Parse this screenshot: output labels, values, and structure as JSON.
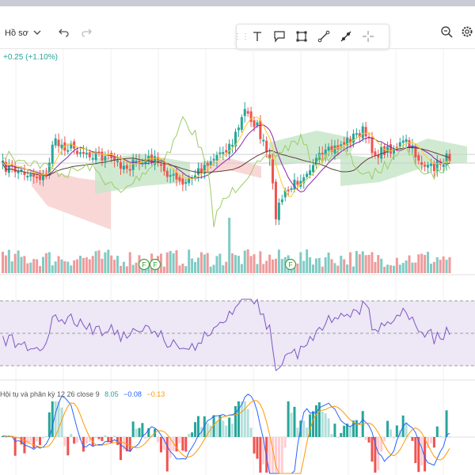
{
  "header": {
    "profile_label": "Hồ sơ",
    "change_text": "+0.25 (+1.10%)"
  },
  "icons": {
    "profile_chevron": "chevron-down-icon",
    "undo": "undo-icon",
    "redo": "redo-icon",
    "drag_handle": "drag-handle-icon",
    "text_tool": "text-tool-icon",
    "callout_tool": "callout-tool-icon",
    "rectangle_tool": "rectangle-tool-icon",
    "line_tool": "trend-line-icon",
    "brush_tool": "ray-tool-icon",
    "crosshair_tool": "crosshair-icon",
    "zoom": "zoom-icon",
    "settings": "gear-icon"
  },
  "events": {
    "marker_letter": "F"
  },
  "macd": {
    "label": "Hội tụ và phân kỳ 12 26 close 9",
    "value_1": "8.05",
    "value_2": "−0.08",
    "value_3": "−0.13"
  },
  "colors": {
    "up": "#26a69a",
    "down": "#ef5350",
    "cloud_green": "#c8e6c9",
    "cloud_red": "#f8d0d0",
    "rsi_band": "#ede7f6",
    "rsi_line": "#7e57c2",
    "macd_line": "#2962ff",
    "signal_line": "#ff9800"
  }
}
